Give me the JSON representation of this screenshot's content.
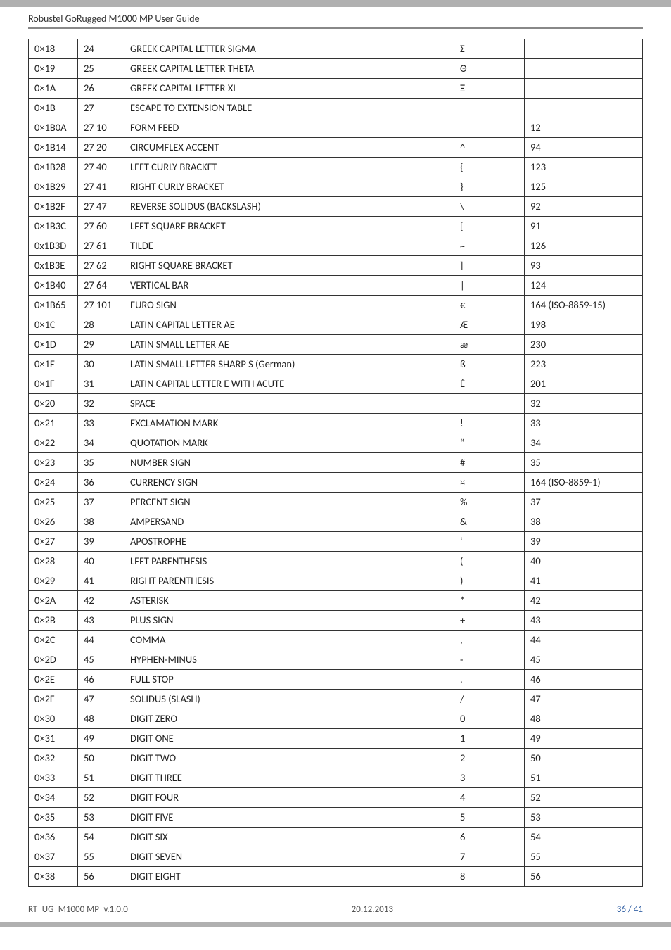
{
  "header": {
    "title": "Robustel GoRugged M1000 MP User Guide"
  },
  "table": {
    "col_widths": [
      "70px",
      "66px",
      "auto",
      "100px",
      "168px"
    ],
    "rows": [
      {
        "hex": "0×18",
        "dec": "24",
        "name": "GREEK CAPITAL LETTER SIGMA",
        "char": "Σ",
        "iso": ""
      },
      {
        "hex": "0×19",
        "dec": "25",
        "name": "GREEK CAPITAL LETTER THETA",
        "char": "Θ",
        "iso": ""
      },
      {
        "hex": "0×1A",
        "dec": "26",
        "name": "GREEK CAPITAL LETTER XI",
        "char": "Ξ",
        "iso": ""
      },
      {
        "hex": "0×1B",
        "dec": "27",
        "name": "ESCAPE TO EXTENSION TABLE",
        "char": "",
        "iso": ""
      },
      {
        "hex": "0×1B0A",
        "dec": "27 10",
        "name": "FORM FEED",
        "char": "",
        "iso": "12"
      },
      {
        "hex": "0×1B14",
        "dec": "27 20",
        "name": "CIRCUMFLEX ACCENT",
        "char": "^",
        "iso": "94"
      },
      {
        "hex": "0×1B28",
        "dec": "27 40",
        "name": "LEFT CURLY BRACKET",
        "char": "{",
        "iso": "123"
      },
      {
        "hex": "0×1B29",
        "dec": "27 41",
        "name": "RIGHT CURLY BRACKET",
        "char": "}",
        "iso": "125"
      },
      {
        "hex": "0×1B2F",
        "dec": "27 47",
        "name": "REVERSE SOLIDUS (BACKSLASH)",
        "char": "\\",
        "iso": "92"
      },
      {
        "hex": "0×1B3C",
        "dec": "27 60",
        "name": "LEFT SQUARE BRACKET",
        "char": "[",
        "iso": "91"
      },
      {
        "hex": "0x1B3D",
        "dec": "27 61",
        "name": "TILDE",
        "char": "~",
        "iso": "126"
      },
      {
        "hex": "0x1B3E",
        "dec": "27 62",
        "name": "RIGHT SQUARE BRACKET",
        "char": "]",
        "iso": "93"
      },
      {
        "hex": "0×1B40",
        "dec": "27 64",
        "name": "VERTICAL BAR",
        "char": "|",
        "iso": "124"
      },
      {
        "hex": "0×1B65",
        "dec": "27 101",
        "name": "EURO SIGN",
        "char": "€",
        "iso": "164 (ISO-8859-15)"
      },
      {
        "hex": "0×1C",
        "dec": "28",
        "name": "LATIN CAPITAL LETTER AE",
        "char": "Æ",
        "iso": "198"
      },
      {
        "hex": "0×1D",
        "dec": "29",
        "name": "LATIN SMALL LETTER AE",
        "char": "æ",
        "iso": "230"
      },
      {
        "hex": "0×1E",
        "dec": "30",
        "name": "LATIN SMALL LETTER SHARP S (German)",
        "char": "ß",
        "iso": "223"
      },
      {
        "hex": "0×1F",
        "dec": "31",
        "name": "LATIN CAPITAL LETTER E WITH ACUTE",
        "char": "É",
        "iso": "201"
      },
      {
        "hex": "0×20",
        "dec": "32",
        "name": "SPACE",
        "char": "",
        "iso": "32"
      },
      {
        "hex": "0×21",
        "dec": "33",
        "name": "EXCLAMATION MARK",
        "char": "!",
        "iso": "33"
      },
      {
        "hex": "0×22",
        "dec": "34",
        "name": "QUOTATION MARK",
        "char": "“",
        "iso": "34"
      },
      {
        "hex": "0×23",
        "dec": "35",
        "name": "NUMBER SIGN",
        "char": "#",
        "iso": "35"
      },
      {
        "hex": "0×24",
        "dec": "36",
        "name": "CURRENCY SIGN",
        "char": "¤",
        "iso": "164 (ISO-8859-1)"
      },
      {
        "hex": "0×25",
        "dec": "37",
        "name": "PERCENT SIGN",
        "char": "%",
        "iso": "37"
      },
      {
        "hex": "0×26",
        "dec": "38",
        "name": "AMPERSAND",
        "char": "&",
        "iso": "38"
      },
      {
        "hex": "0×27",
        "dec": "39",
        "name": "APOSTROPHE",
        "char": "‘",
        "iso": "39"
      },
      {
        "hex": "0×28",
        "dec": "40",
        "name": "LEFT PARENTHESIS",
        "char": "(",
        "iso": "40"
      },
      {
        "hex": "0×29",
        "dec": "41",
        "name": "RIGHT PARENTHESIS",
        "char": ")",
        "iso": "41"
      },
      {
        "hex": "0×2A",
        "dec": "42",
        "name": "ASTERISK",
        "char": "*",
        "iso": "42"
      },
      {
        "hex": "0×2B",
        "dec": "43",
        "name": "PLUS SIGN",
        "char": "+",
        "iso": "43"
      },
      {
        "hex": "0×2C",
        "dec": "44",
        "name": "COMMA",
        "char": ",",
        "iso": "44"
      },
      {
        "hex": "0×2D",
        "dec": "45",
        "name": "HYPHEN-MINUS",
        "char": "-",
        "iso": "45"
      },
      {
        "hex": "0×2E",
        "dec": "46",
        "name": "FULL STOP",
        "char": ".",
        "iso": "46"
      },
      {
        "hex": "0×2F",
        "dec": "47",
        "name": "SOLIDUS (SLASH)",
        "char": "/",
        "iso": "47"
      },
      {
        "hex": "0×30",
        "dec": "48",
        "name": "DIGIT ZERO",
        "char": "0",
        "iso": "48"
      },
      {
        "hex": "0×31",
        "dec": "49",
        "name": "DIGIT ONE",
        "char": "1",
        "iso": "49"
      },
      {
        "hex": "0×32",
        "dec": "50",
        "name": "DIGIT TWO",
        "char": "2",
        "iso": "50"
      },
      {
        "hex": "0×33",
        "dec": "51",
        "name": "DIGIT THREE",
        "char": "3",
        "iso": "51"
      },
      {
        "hex": "0×34",
        "dec": "52",
        "name": "DIGIT FOUR",
        "char": "4",
        "iso": "52"
      },
      {
        "hex": "0×35",
        "dec": "53",
        "name": "DIGIT FIVE",
        "char": "5",
        "iso": "53"
      },
      {
        "hex": "0×36",
        "dec": "54",
        "name": "DIGIT SIX",
        "char": "6",
        "iso": "54"
      },
      {
        "hex": "0×37",
        "dec": "55",
        "name": "DIGIT SEVEN",
        "char": "7",
        "iso": "55"
      },
      {
        "hex": "0×38",
        "dec": "56",
        "name": "DIGIT EIGHT",
        "char": "8",
        "iso": "56"
      }
    ]
  },
  "footer": {
    "left": "RT_UG_M1000 MP_v.1.0.0",
    "center": "20.12.2013",
    "right": "36 / 41"
  }
}
